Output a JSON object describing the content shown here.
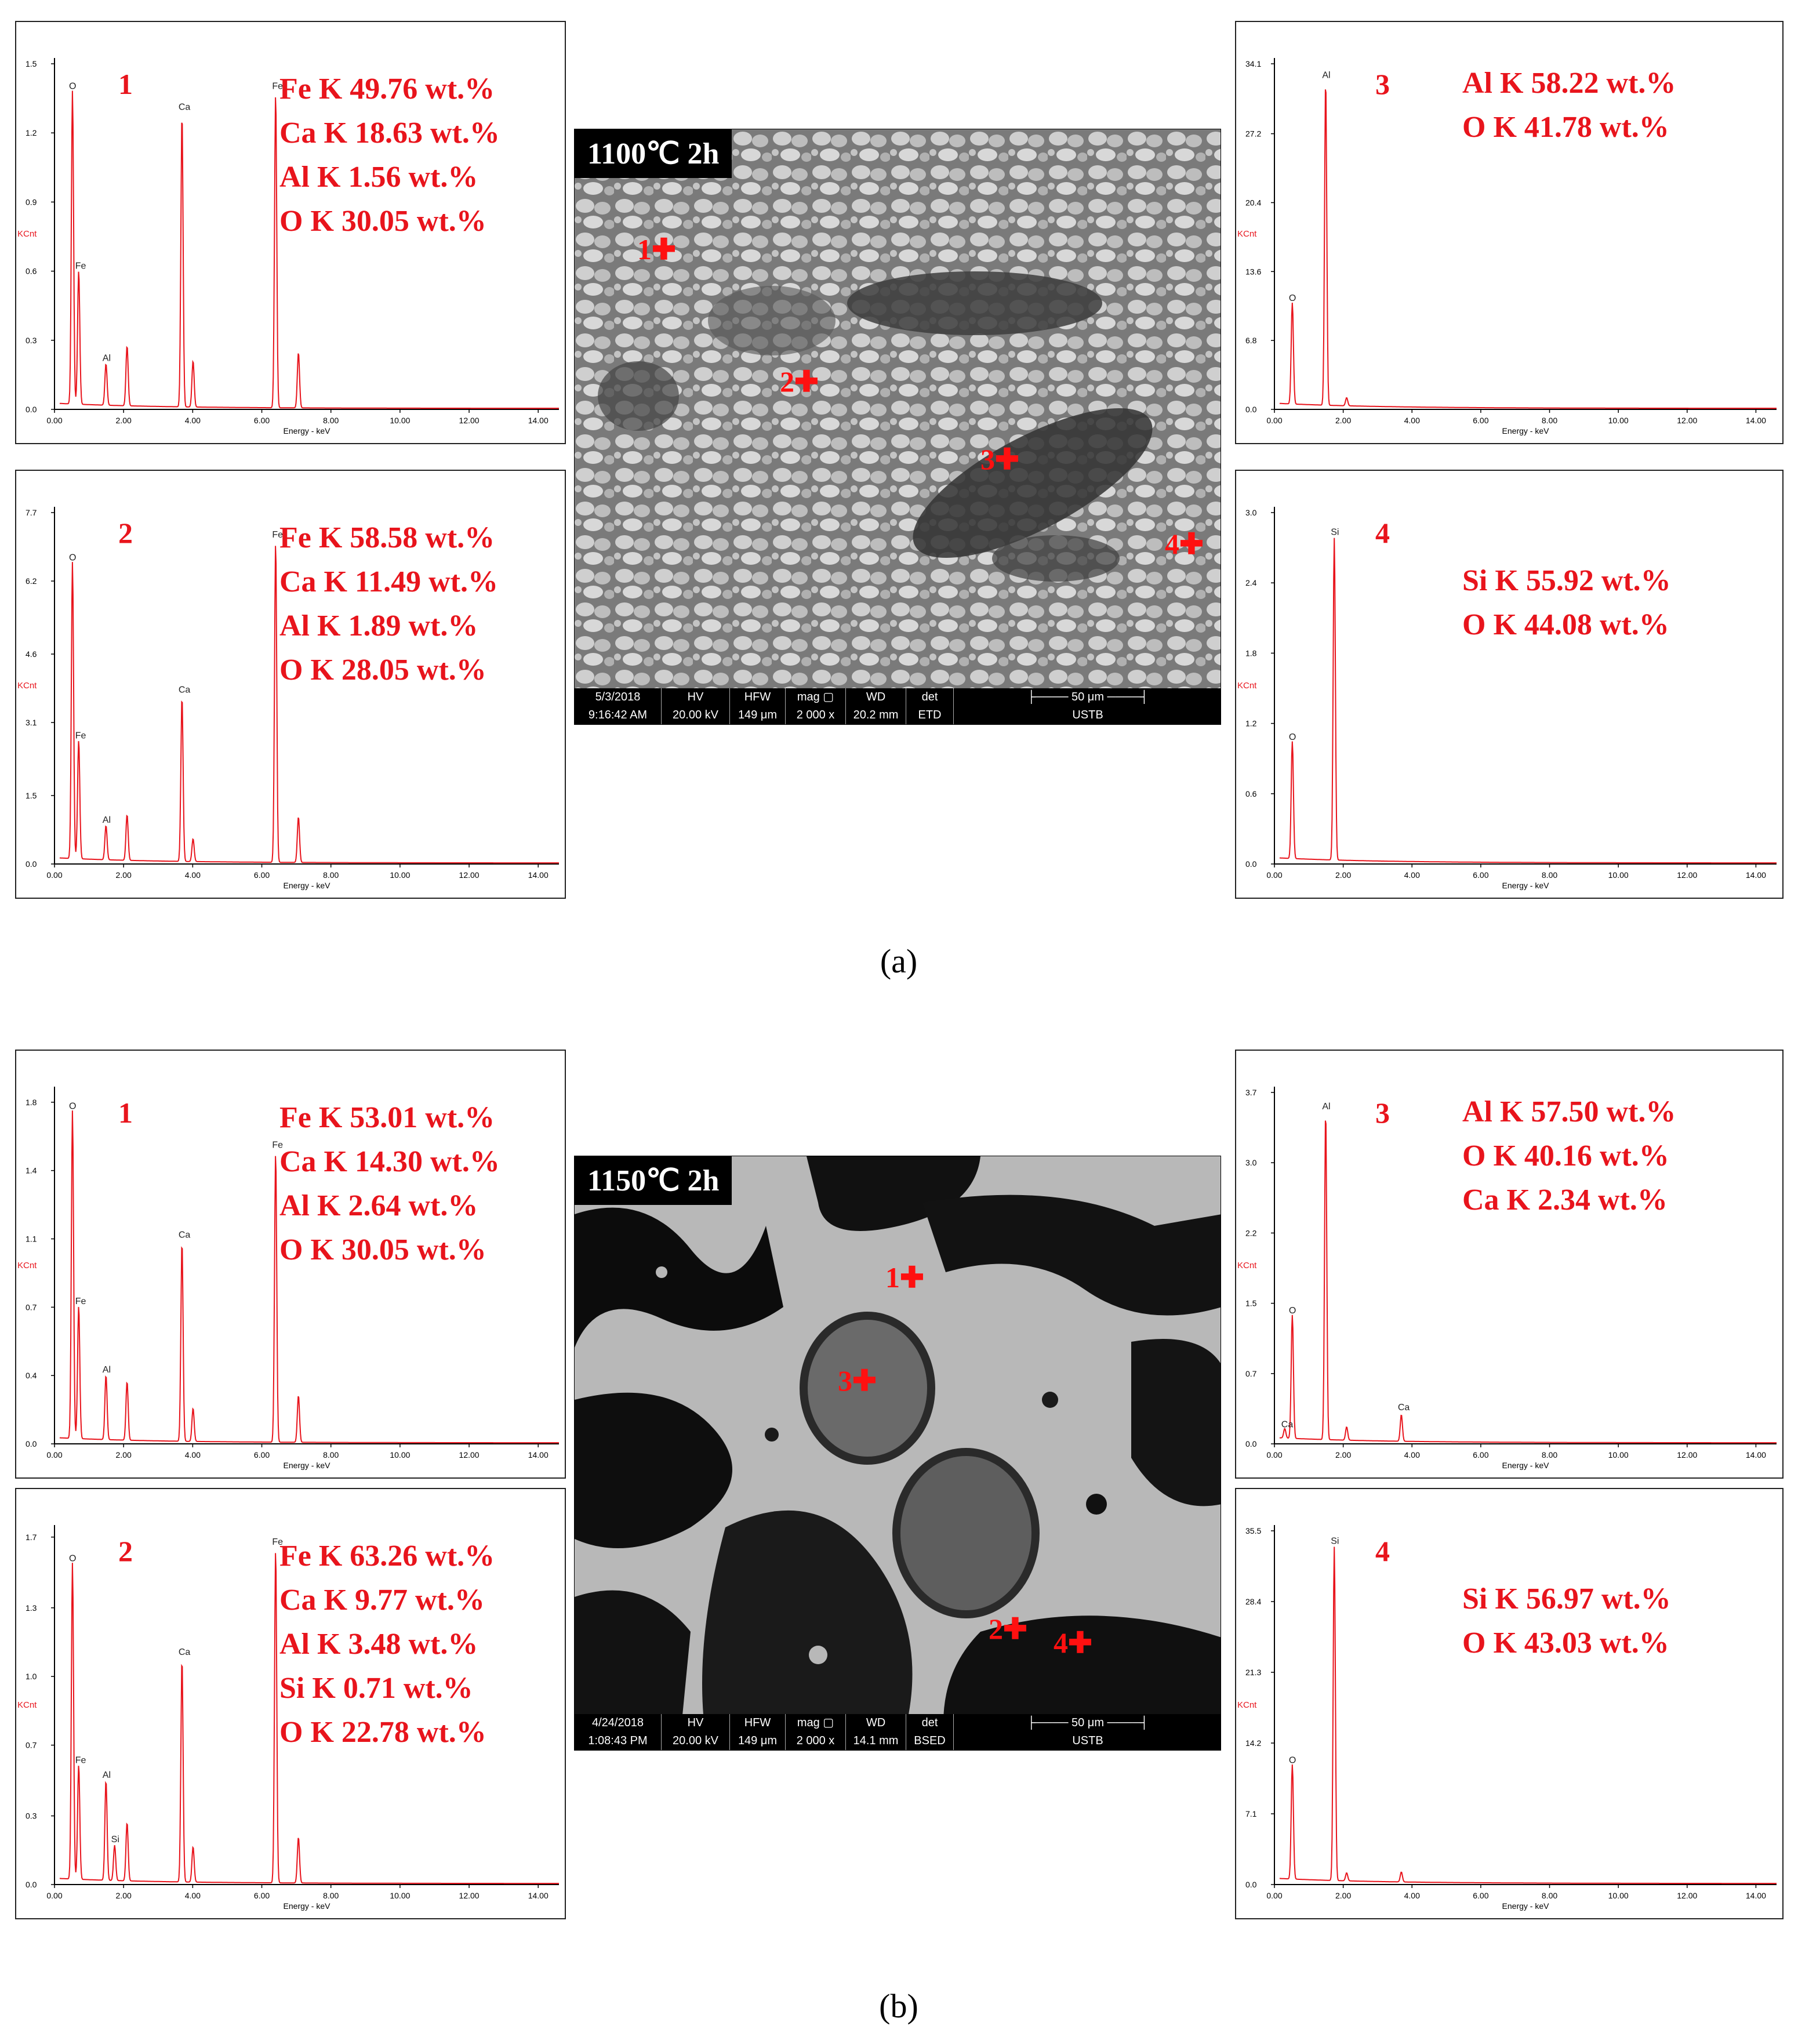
{
  "colors": {
    "spectrum": "#e8141c",
    "label": "#e8141c",
    "axis": "#000000"
  },
  "figure_a": {
    "caption": "(a)",
    "sem": {
      "title": "1100℃ 2h",
      "bar": {
        "date": "5/3/2018",
        "time": "9:16:42 AM",
        "hv_label": "HV",
        "hv": "20.00 kV",
        "hfw_label": "HFW",
        "hfw": "149 μm",
        "mag_label": "mag ▢",
        "mag": "2 000 x",
        "wd_label": "WD",
        "wd": "20.2 mm",
        "det_label": "det",
        "det": "ETD",
        "scale": "50 μm",
        "org": "USTB"
      },
      "markers": [
        "1",
        "2",
        "3",
        "4"
      ]
    }
  },
  "figure_b": {
    "caption": "(b)",
    "sem": {
      "title": "1150℃ 2h",
      "bar": {
        "date": "4/24/2018",
        "time": "1:08:43 PM",
        "hv_label": "HV",
        "hv": "20.00 kV",
        "hfw_label": "HFW",
        "hfw": "149 μm",
        "mag_label": "mag ▢",
        "mag": "2 000 x",
        "wd_label": "WD",
        "wd": "14.1 mm",
        "det_label": "det",
        "det": "BSED",
        "scale": "50 μm",
        "org": "USTB"
      },
      "markers": [
        "1",
        "2",
        "3",
        "4"
      ]
    }
  },
  "chart_data": [
    {
      "id": "a1",
      "type": "line",
      "point": "1",
      "xlabel": "Energy - keV",
      "ylabel": "KCnt",
      "xlim": [
        0,
        14.6
      ],
      "ylim": [
        0,
        1.5
      ],
      "yticks": [
        "0.0",
        "0.3",
        "0.6",
        "0.9",
        "1.2",
        "1.5"
      ],
      "ytick_values": [
        0,
        0.3,
        0.6,
        0.9,
        1.2,
        1.5
      ],
      "composition": [
        "Fe K  49.76 wt.%",
        "Ca K 18.63 wt.%",
        "Al K   1.56 wt.%",
        "O K   30.05 wt.%"
      ],
      "peaks": [
        {
          "x": 0.52,
          "y": 1.36,
          "label": "O"
        },
        {
          "x": 0.7,
          "y": 0.58,
          "label": "Fe"
        },
        {
          "x": 1.49,
          "y": 0.18,
          "label": "Al"
        },
        {
          "x": 2.1,
          "y": 0.26,
          "label": ""
        },
        {
          "x": 3.69,
          "y": 1.27,
          "label": "Ca"
        },
        {
          "x": 4.01,
          "y": 0.2,
          "label": ""
        },
        {
          "x": 6.4,
          "y": 1.36,
          "label": "Fe"
        },
        {
          "x": 7.06,
          "y": 0.24,
          "label": ""
        }
      ]
    },
    {
      "id": "a2",
      "type": "line",
      "point": "2",
      "xlabel": "Energy - keV",
      "ylabel": "KCnt",
      "xlim": [
        0,
        14.6
      ],
      "ylim": [
        0,
        7.7
      ],
      "yticks": [
        "0.0",
        "1.5",
        "3.1",
        "4.6",
        "6.2",
        "7.7"
      ],
      "ytick_values": [
        0,
        1.5,
        3.1,
        4.6,
        6.2,
        7.7
      ],
      "composition": [
        "Fe K  58.58 wt.%",
        "Ca K 11.49 wt.%",
        "Al K  1.89 wt.%",
        "O K   28.05 wt.%"
      ],
      "peaks": [
        {
          "x": 0.52,
          "y": 6.5,
          "label": "O"
        },
        {
          "x": 0.7,
          "y": 2.6,
          "label": "Fe"
        },
        {
          "x": 1.49,
          "y": 0.75,
          "label": "Al"
        },
        {
          "x": 2.1,
          "y": 1.0,
          "label": ""
        },
        {
          "x": 3.69,
          "y": 3.6,
          "label": "Ca"
        },
        {
          "x": 4.01,
          "y": 0.5,
          "label": ""
        },
        {
          "x": 6.4,
          "y": 7.0,
          "label": "Fe"
        },
        {
          "x": 7.06,
          "y": 1.0,
          "label": ""
        }
      ]
    },
    {
      "id": "a3",
      "type": "line",
      "point": "3",
      "xlabel": "Energy - keV",
      "ylabel": "KCnt",
      "xlim": [
        0,
        14.6
      ],
      "ylim": [
        0,
        34.1
      ],
      "yticks": [
        "0.0",
        "6.8",
        "13.6",
        "20.4",
        "27.2",
        "34.1"
      ],
      "ytick_values": [
        0,
        6.8,
        13.6,
        20.4,
        27.2,
        34.1
      ],
      "composition": [
        "Al K 58.22 wt.%",
        "O K  41.78 wt.%"
      ],
      "peaks": [
        {
          "x": 0.52,
          "y": 10.0,
          "label": "O"
        },
        {
          "x": 1.49,
          "y": 32.0,
          "label": "Al"
        },
        {
          "x": 2.1,
          "y": 0.8,
          "label": ""
        }
      ]
    },
    {
      "id": "a4",
      "type": "line",
      "point": "4",
      "xlabel": "Energy - keV",
      "ylabel": "KCnt",
      "xlim": [
        0,
        14.6
      ],
      "ylim": [
        0,
        3.0
      ],
      "yticks": [
        "0.0",
        "0.6",
        "1.2",
        "1.8",
        "2.4",
        "3.0"
      ],
      "ytick_values": [
        0,
        0.6,
        1.2,
        1.8,
        2.4,
        3.0
      ],
      "composition": [
        "Si K  55.92 wt.%",
        "O K  44.08 wt.%"
      ],
      "peaks": [
        {
          "x": 0.52,
          "y": 1.0,
          "label": "O"
        },
        {
          "x": 1.74,
          "y": 2.75,
          "label": "Si"
        }
      ]
    },
    {
      "id": "b1",
      "type": "line",
      "point": "1",
      "xlabel": "Energy - keV",
      "ylabel": "KCnt",
      "xlim": [
        0,
        14.6
      ],
      "ylim": [
        0,
        1.8
      ],
      "yticks": [
        "0.0",
        "0.4",
        "0.7",
        "1.1",
        "1.4",
        "1.8"
      ],
      "ytick_values": [
        0,
        0.35,
        0.7,
        1.05,
        1.4,
        1.75
      ],
      "composition": [
        "Fe K  53.01 wt.%",
        "Ca K 14.30 wt.%",
        "Al K  2.64 wt.%",
        "O K   30.05 wt.%"
      ],
      "peaks": [
        {
          "x": 0.52,
          "y": 1.68,
          "label": "O"
        },
        {
          "x": 0.7,
          "y": 0.68,
          "label": "Fe"
        },
        {
          "x": 1.49,
          "y": 0.33,
          "label": "Al"
        },
        {
          "x": 2.1,
          "y": 0.3,
          "label": ""
        },
        {
          "x": 3.69,
          "y": 1.02,
          "label": "Ca"
        },
        {
          "x": 4.01,
          "y": 0.17,
          "label": ""
        },
        {
          "x": 6.4,
          "y": 1.48,
          "label": "Fe"
        },
        {
          "x": 7.06,
          "y": 0.24,
          "label": ""
        }
      ]
    },
    {
      "id": "b2",
      "type": "line",
      "point": "2",
      "xlabel": "Energy - keV",
      "ylabel": "KCnt",
      "xlim": [
        0,
        14.6
      ],
      "ylim": [
        0,
        1.7
      ],
      "yticks": [
        "0.0",
        "0.3",
        "0.7",
        "1.0",
        "1.3",
        "1.7"
      ],
      "ytick_values": [
        0,
        0.33,
        0.67,
        1.0,
        1.33,
        1.67
      ],
      "composition": [
        "Fe K  63.26 wt.%",
        "Ca K 9.77 wt.%",
        "Al K  3.48 wt.%",
        " Si K  0.71 wt.%",
        "O K   22.78 wt.%"
      ],
      "peaks": [
        {
          "x": 0.52,
          "y": 1.52,
          "label": "O"
        },
        {
          "x": 0.7,
          "y": 0.55,
          "label": "Fe"
        },
        {
          "x": 1.49,
          "y": 0.48,
          "label": "Al"
        },
        {
          "x": 1.74,
          "y": 0.17,
          "label": "Si"
        },
        {
          "x": 2.1,
          "y": 0.28,
          "label": ""
        },
        {
          "x": 3.69,
          "y": 1.07,
          "label": "Ca"
        },
        {
          "x": 4.01,
          "y": 0.17,
          "label": ""
        },
        {
          "x": 6.4,
          "y": 1.6,
          "label": "Fe"
        },
        {
          "x": 7.06,
          "y": 0.22,
          "label": ""
        }
      ]
    },
    {
      "id": "b3",
      "type": "line",
      "point": "3",
      "xlabel": "Energy - keV",
      "ylabel": "KCnt",
      "xlim": [
        0,
        14.6
      ],
      "ylim": [
        0,
        3.7
      ],
      "yticks": [
        "0.0",
        "0.7",
        "1.5",
        "2.2",
        "3.0",
        "3.7"
      ],
      "ytick_values": [
        0,
        0.74,
        1.48,
        2.22,
        2.96,
        3.7
      ],
      "composition": [
        "Al K 57.50 wt.%",
        "O K  40.16 wt.%",
        "Ca K 2.34 wt.%"
      ],
      "peaks": [
        {
          "x": 0.3,
          "y": 0.1,
          "label": "Ca"
        },
        {
          "x": 0.52,
          "y": 1.3,
          "label": "O"
        },
        {
          "x": 1.49,
          "y": 3.45,
          "label": "Al"
        },
        {
          "x": 2.1,
          "y": 0.14,
          "label": ""
        },
        {
          "x": 3.69,
          "y": 0.28,
          "label": "Ca"
        }
      ]
    },
    {
      "id": "b4",
      "type": "line",
      "point": "4",
      "xlabel": "Energy - keV",
      "ylabel": "KCnt",
      "xlim": [
        0,
        14.6
      ],
      "ylim": [
        0,
        35.5
      ],
      "yticks": [
        "0.0",
        "7.1",
        "14.2",
        "21.3",
        "28.4",
        "35.5"
      ],
      "ytick_values": [
        0,
        7.1,
        14.2,
        21.3,
        28.4,
        35.5
      ],
      "composition": [
        "Si K  56.97 wt.%",
        "O K  43.03 wt.%"
      ],
      "peaks": [
        {
          "x": 0.52,
          "y": 11.5,
          "label": "O"
        },
        {
          "x": 1.74,
          "y": 33.5,
          "label": "Si"
        },
        {
          "x": 2.1,
          "y": 0.8,
          "label": ""
        },
        {
          "x": 3.69,
          "y": 1.0,
          "label": ""
        }
      ]
    }
  ],
  "xticks": [
    "0.00",
    "2.00",
    "4.00",
    "6.00",
    "8.00",
    "10.00",
    "12.00",
    "14.00"
  ],
  "xtick_values": [
    0,
    2,
    4,
    6,
    8,
    10,
    12,
    14
  ]
}
